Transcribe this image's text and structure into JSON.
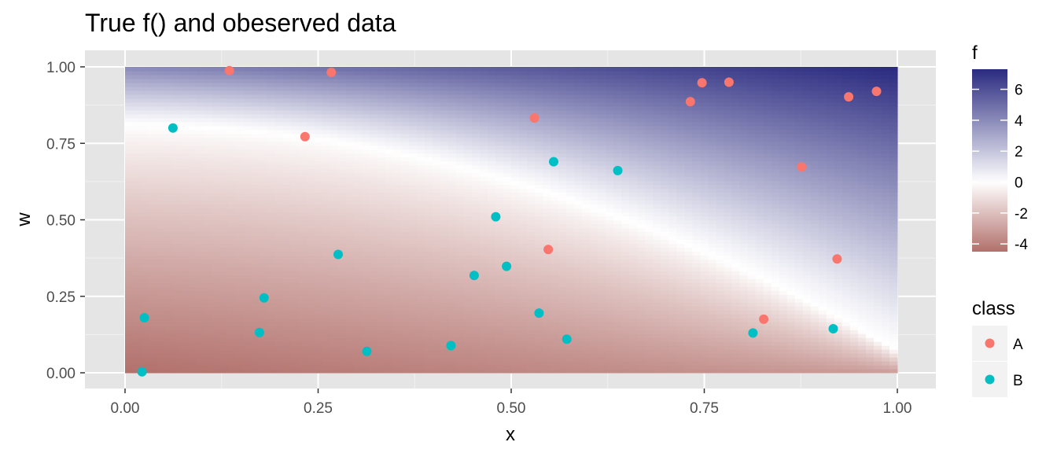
{
  "chart_data": {
    "type": "heatmap",
    "title": "True f() and obeserved data",
    "xlabel": "x",
    "ylabel": "w",
    "xlim": [
      0,
      1
    ],
    "ylim": [
      0,
      1
    ],
    "x_ticks": [
      "0.00",
      "0.25",
      "0.50",
      "0.75",
      "1.00"
    ],
    "y_ticks": [
      "0.00",
      "0.25",
      "0.50",
      "0.75",
      "1.00"
    ],
    "grid": true,
    "background_color": "#e5e5e5",
    "fill": {
      "name": "f",
      "range": [
        -4.5,
        7.3
      ],
      "low_color": "#b2706b",
      "mid_color": "#ffffff",
      "high_color": "#2a2a80",
      "breaks": [
        -4,
        -2,
        0,
        2,
        4,
        6
      ],
      "break_labels": [
        "-4",
        "-2",
        "0",
        "2",
        "4",
        "6"
      ],
      "zero_contour_w": {
        "at_x0": 0.81,
        "at_x1": 0.07
      }
    },
    "legend_position": "right",
    "color_legend": {
      "name": "class",
      "entries": [
        {
          "label": "A",
          "color": "#f8766d"
        },
        {
          "label": "B",
          "color": "#00bfc4"
        }
      ]
    },
    "series": [
      {
        "name": "A",
        "color": "#f8766d",
        "points": [
          [
            0.135,
            0.988
          ],
          [
            0.267,
            0.982
          ],
          [
            0.233,
            0.772
          ],
          [
            0.53,
            0.833
          ],
          [
            0.747,
            0.948
          ],
          [
            0.782,
            0.95
          ],
          [
            0.732,
            0.886
          ],
          [
            0.937,
            0.902
          ],
          [
            0.973,
            0.92
          ],
          [
            0.876,
            0.673
          ],
          [
            0.548,
            0.403
          ],
          [
            0.922,
            0.372
          ],
          [
            0.827,
            0.175
          ]
        ]
      },
      {
        "name": "B",
        "color": "#00bfc4",
        "points": [
          [
            0.062,
            0.8
          ],
          [
            0.555,
            0.69
          ],
          [
            0.638,
            0.661
          ],
          [
            0.48,
            0.51
          ],
          [
            0.276,
            0.387
          ],
          [
            0.494,
            0.348
          ],
          [
            0.452,
            0.318
          ],
          [
            0.18,
            0.245
          ],
          [
            0.025,
            0.18
          ],
          [
            0.174,
            0.132
          ],
          [
            0.536,
            0.195
          ],
          [
            0.572,
            0.11
          ],
          [
            0.813,
            0.13
          ],
          [
            0.917,
            0.144
          ],
          [
            0.313,
            0.07
          ],
          [
            0.422,
            0.089
          ],
          [
            0.022,
            0.003
          ]
        ]
      }
    ]
  }
}
